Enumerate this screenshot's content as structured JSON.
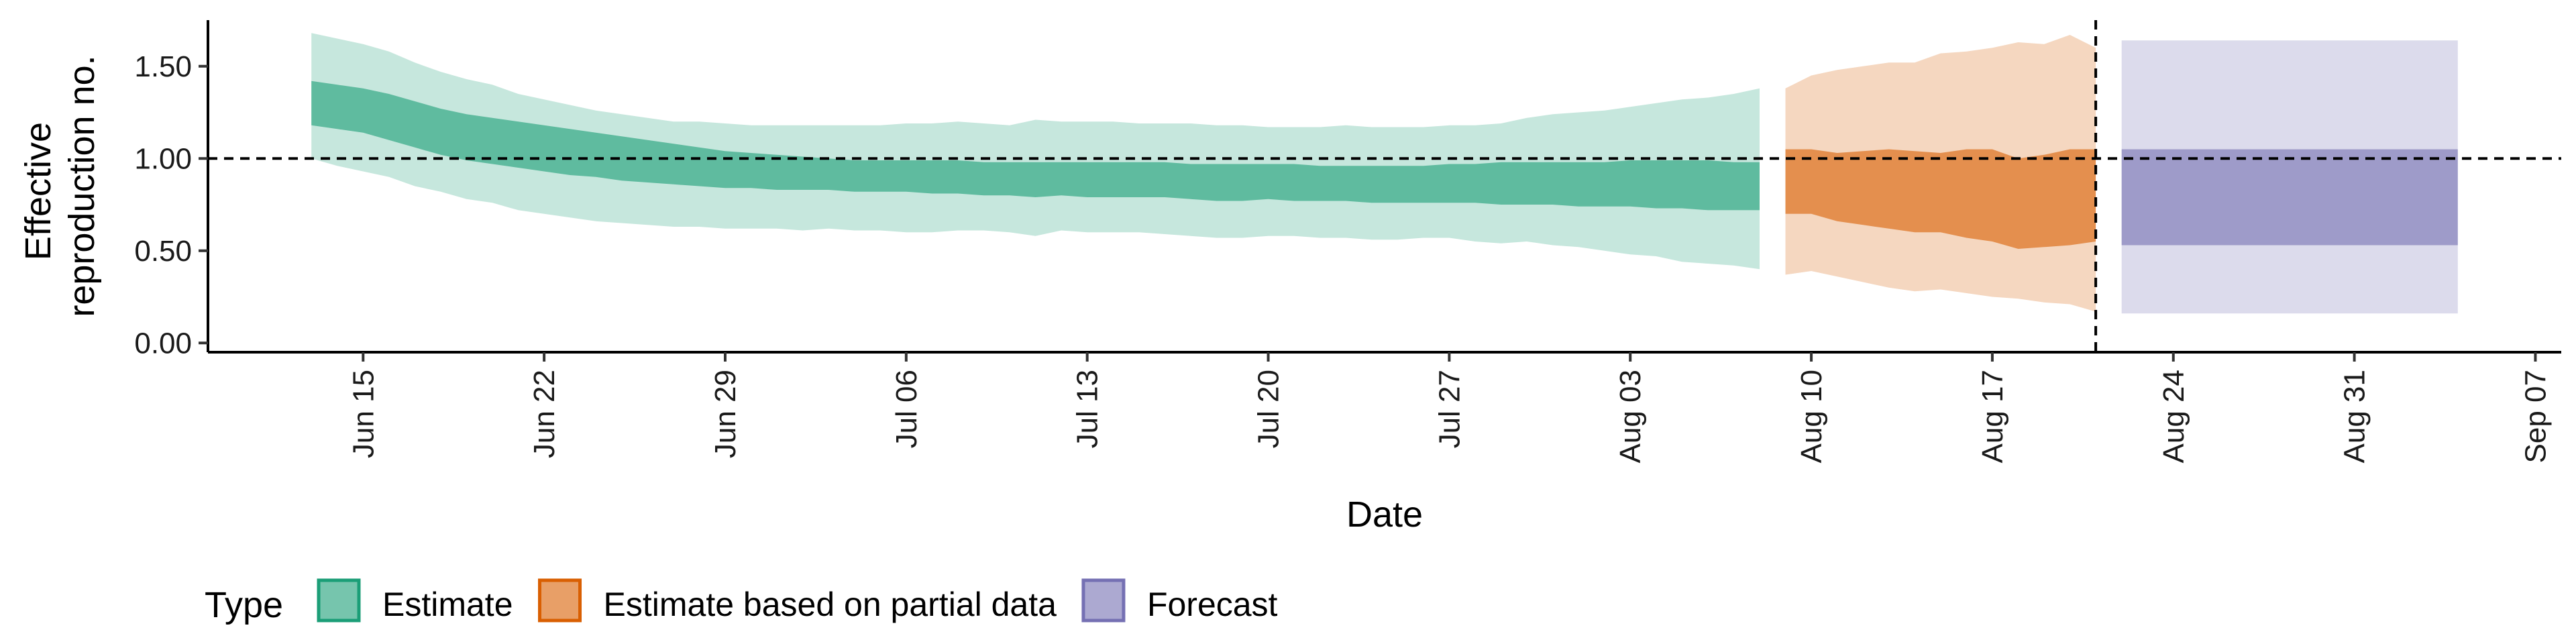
{
  "chart_data": {
    "type": "area",
    "xlabel": "Date",
    "ylabel": [
      "Effective",
      "reproduction no."
    ],
    "ylim": [
      -0.05,
      1.75
    ],
    "y_ticks": [
      "0.00",
      "0.50",
      "1.00",
      "1.50"
    ],
    "y_tick_values": [
      0,
      0.5,
      1.0,
      1.5
    ],
    "x_ticks": [
      "Jun 15",
      "Jun 22",
      "Jun 29",
      "Jul 06",
      "Jul 13",
      "Jul 20",
      "Jul 27",
      "Aug 03",
      "Aug 10",
      "Aug 17",
      "Aug 24",
      "Aug 31",
      "Sep 07"
    ],
    "x_tick_dates": [
      "2020-06-15",
      "2020-06-22",
      "2020-06-29",
      "2020-07-06",
      "2020-07-13",
      "2020-07-20",
      "2020-07-27",
      "2020-08-03",
      "2020-08-10",
      "2020-08-17",
      "2020-08-24",
      "2020-08-31",
      "2020-09-07"
    ],
    "xlim": [
      "2020-06-09",
      "2020-09-08"
    ],
    "reference_line_y": 1.0,
    "reference_line_x": "2020-08-21",
    "legend": {
      "title": "Type",
      "position": "bottom-left",
      "entries": [
        "Estimate",
        "Estimate based on partial data",
        "Forecast"
      ]
    },
    "colors": {
      "Estimate": "#1b9e77",
      "Estimate based on partial data": "#d95f02",
      "Forecast": "#7570b3"
    },
    "series": [
      {
        "name": "Estimate",
        "x": [
          "2020-06-13",
          "2020-06-14",
          "2020-06-15",
          "2020-06-16",
          "2020-06-17",
          "2020-06-18",
          "2020-06-19",
          "2020-06-20",
          "2020-06-21",
          "2020-06-22",
          "2020-06-23",
          "2020-06-24",
          "2020-06-25",
          "2020-06-26",
          "2020-06-27",
          "2020-06-28",
          "2020-06-29",
          "2020-06-30",
          "2020-07-01",
          "2020-07-02",
          "2020-07-03",
          "2020-07-04",
          "2020-07-05",
          "2020-07-06",
          "2020-07-07",
          "2020-07-08",
          "2020-07-09",
          "2020-07-10",
          "2020-07-11",
          "2020-07-12",
          "2020-07-13",
          "2020-07-14",
          "2020-07-15",
          "2020-07-16",
          "2020-07-17",
          "2020-07-18",
          "2020-07-19",
          "2020-07-20",
          "2020-07-21",
          "2020-07-22",
          "2020-07-23",
          "2020-07-24",
          "2020-07-25",
          "2020-07-26",
          "2020-07-27",
          "2020-07-28",
          "2020-07-29",
          "2020-07-30",
          "2020-07-31",
          "2020-08-01",
          "2020-08-02",
          "2020-08-03",
          "2020-08-04",
          "2020-08-05",
          "2020-08-06",
          "2020-08-07",
          "2020-08-08"
        ],
        "lower90": [
          1.0,
          0.96,
          0.93,
          0.9,
          0.85,
          0.82,
          0.78,
          0.76,
          0.72,
          0.7,
          0.68,
          0.66,
          0.65,
          0.64,
          0.63,
          0.63,
          0.62,
          0.62,
          0.62,
          0.61,
          0.62,
          0.61,
          0.61,
          0.6,
          0.6,
          0.61,
          0.61,
          0.6,
          0.58,
          0.61,
          0.6,
          0.6,
          0.6,
          0.59,
          0.58,
          0.57,
          0.57,
          0.58,
          0.58,
          0.57,
          0.57,
          0.56,
          0.56,
          0.57,
          0.57,
          0.55,
          0.54,
          0.55,
          0.53,
          0.52,
          0.5,
          0.48,
          0.47,
          0.44,
          0.43,
          0.42,
          0.4
        ],
        "lower50": [
          1.18,
          1.16,
          1.14,
          1.1,
          1.06,
          1.02,
          0.99,
          0.97,
          0.95,
          0.93,
          0.91,
          0.9,
          0.88,
          0.87,
          0.86,
          0.85,
          0.84,
          0.84,
          0.83,
          0.83,
          0.83,
          0.82,
          0.82,
          0.82,
          0.81,
          0.81,
          0.8,
          0.8,
          0.79,
          0.8,
          0.79,
          0.79,
          0.79,
          0.79,
          0.78,
          0.77,
          0.77,
          0.78,
          0.77,
          0.77,
          0.77,
          0.76,
          0.76,
          0.76,
          0.76,
          0.76,
          0.75,
          0.75,
          0.75,
          0.74,
          0.74,
          0.74,
          0.73,
          0.73,
          0.72,
          0.72,
          0.72
        ],
        "upper50": [
          1.42,
          1.4,
          1.38,
          1.35,
          1.31,
          1.27,
          1.24,
          1.22,
          1.2,
          1.18,
          1.16,
          1.14,
          1.12,
          1.1,
          1.08,
          1.06,
          1.04,
          1.03,
          1.02,
          1.01,
          1.0,
          0.99,
          0.99,
          0.99,
          0.99,
          0.99,
          0.98,
          0.98,
          0.98,
          0.98,
          0.98,
          0.98,
          0.98,
          0.98,
          0.97,
          0.97,
          0.97,
          0.97,
          0.97,
          0.96,
          0.96,
          0.96,
          0.96,
          0.96,
          0.97,
          0.97,
          0.98,
          0.98,
          0.98,
          0.98,
          0.98,
          0.99,
          0.99,
          0.99,
          0.99,
          0.98,
          0.98
        ],
        "upper90": [
          1.68,
          1.65,
          1.62,
          1.58,
          1.52,
          1.47,
          1.43,
          1.4,
          1.35,
          1.32,
          1.29,
          1.26,
          1.24,
          1.22,
          1.2,
          1.2,
          1.19,
          1.18,
          1.18,
          1.18,
          1.18,
          1.18,
          1.18,
          1.19,
          1.19,
          1.2,
          1.19,
          1.18,
          1.21,
          1.2,
          1.2,
          1.2,
          1.19,
          1.19,
          1.19,
          1.18,
          1.18,
          1.17,
          1.17,
          1.17,
          1.18,
          1.17,
          1.17,
          1.17,
          1.18,
          1.18,
          1.19,
          1.22,
          1.24,
          1.25,
          1.26,
          1.28,
          1.3,
          1.32,
          1.33,
          1.35,
          1.38
        ]
      },
      {
        "name": "Estimate based on partial data",
        "x": [
          "2020-08-09",
          "2020-08-10",
          "2020-08-11",
          "2020-08-12",
          "2020-08-13",
          "2020-08-14",
          "2020-08-15",
          "2020-08-16",
          "2020-08-17",
          "2020-08-18",
          "2020-08-19",
          "2020-08-20",
          "2020-08-21"
        ],
        "lower90": [
          0.37,
          0.39,
          0.36,
          0.33,
          0.3,
          0.28,
          0.29,
          0.27,
          0.25,
          0.24,
          0.22,
          0.21,
          0.17
        ],
        "lower50": [
          0.7,
          0.7,
          0.66,
          0.64,
          0.62,
          0.6,
          0.6,
          0.57,
          0.55,
          0.51,
          0.52,
          0.53,
          0.55
        ],
        "upper50": [
          1.05,
          1.05,
          1.03,
          1.04,
          1.05,
          1.04,
          1.03,
          1.05,
          1.05,
          1.0,
          1.02,
          1.05,
          1.05
        ],
        "upper90": [
          1.38,
          1.45,
          1.48,
          1.5,
          1.52,
          1.52,
          1.57,
          1.58,
          1.6,
          1.63,
          1.62,
          1.67,
          1.6
        ]
      },
      {
        "name": "Forecast",
        "x": [
          "2020-08-22",
          "2020-09-04"
        ],
        "lower90": [
          0.16,
          0.16
        ],
        "lower50": [
          0.53,
          0.53
        ],
        "upper50": [
          1.05,
          1.05
        ],
        "upper90": [
          1.64,
          1.64
        ]
      }
    ]
  }
}
